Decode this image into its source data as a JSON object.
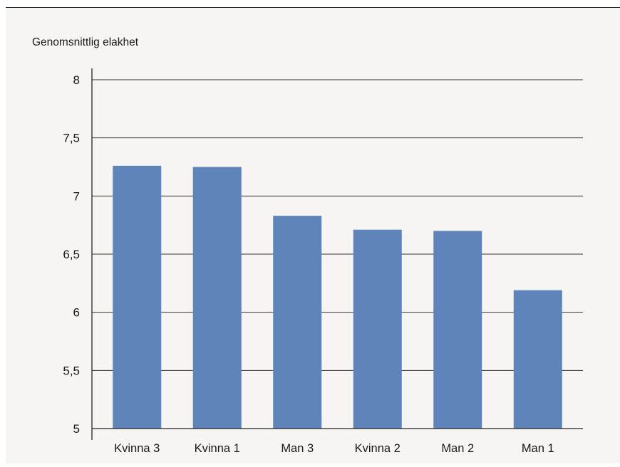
{
  "chart_data": {
    "type": "bar",
    "ylabel": "Genomsnittlig elakhet",
    "categories": [
      "Kvinna 3",
      "Kvinna 1",
      "Man 3",
      "Kvinna 2",
      "Man 2",
      "Man 1"
    ],
    "values": [
      7.26,
      7.25,
      6.83,
      6.71,
      6.7,
      6.19
    ],
    "ylim": [
      5,
      8
    ],
    "yticks": [
      5,
      5.5,
      6,
      6.5,
      7,
      7.5,
      8
    ],
    "ytick_labels": [
      "5",
      "5,5",
      "6",
      "6,5",
      "7",
      "7,5",
      "8"
    ],
    "grid": true,
    "bar_color": "#5f84ba",
    "grid_color": "#333333"
  }
}
